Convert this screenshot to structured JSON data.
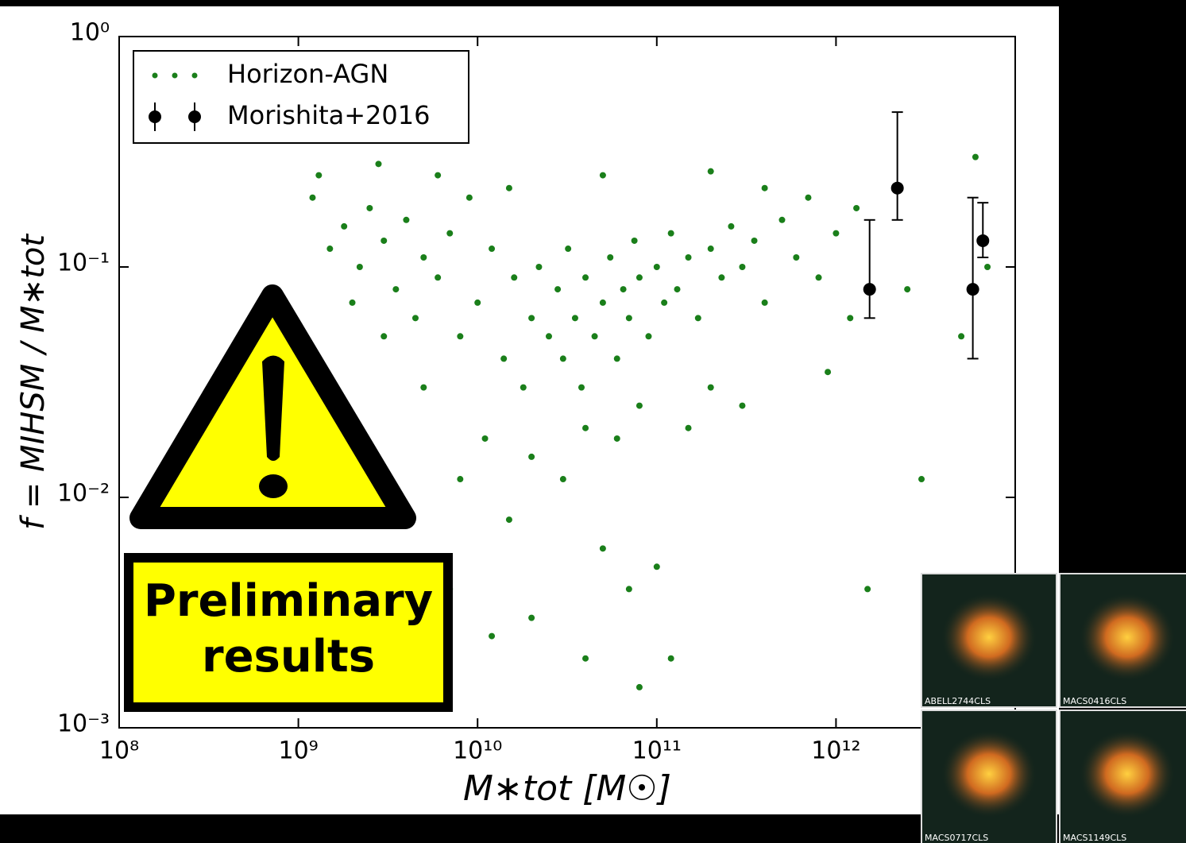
{
  "chart_data": {
    "type": "scatter",
    "xlabel": "M∗tot [M☉]",
    "ylabel": "f = MIHSM / M∗tot",
    "xscale": "log",
    "yscale": "log",
    "xlim": [
      100000000,
      10000000000000
    ],
    "ylim": [
      0.001,
      1
    ],
    "xticks": [
      {
        "value": 100000000,
        "label": "10⁸"
      },
      {
        "value": 1000000000,
        "label": "10⁹"
      },
      {
        "value": 10000000000,
        "label": "10¹⁰"
      },
      {
        "value": 100000000000,
        "label": "10¹¹"
      },
      {
        "value": 1000000000000,
        "label": "10¹²"
      }
    ],
    "yticks": [
      {
        "value": 0.001,
        "label": "10⁻³"
      },
      {
        "value": 0.01,
        "label": "10⁻²"
      },
      {
        "value": 0.1,
        "label": "10⁻¹"
      },
      {
        "value": 1,
        "label": "10⁰"
      }
    ],
    "legend": "upper left",
    "series": [
      {
        "name": "Horizon-AGN",
        "color": "#1a7f1a",
        "x": [
          1200000000.0,
          1500000000.0,
          1800000000.0,
          2200000000.0,
          2500000000.0,
          3000000000.0,
          3500000000.0,
          4000000000.0,
          4500000000.0,
          5000000000.0,
          6000000000.0,
          7000000000.0,
          8000000000.0,
          9000000000.0,
          10000000000.0,
          12000000000.0,
          14000000000.0,
          16000000000.0,
          18000000000.0,
          20000000000.0,
          22000000000.0,
          25000000000.0,
          28000000000.0,
          30000000000.0,
          32000000000.0,
          35000000000.0,
          38000000000.0,
          40000000000.0,
          45000000000.0,
          50000000000.0,
          55000000000.0,
          60000000000.0,
          65000000000.0,
          70000000000.0,
          75000000000.0,
          80000000000.0,
          90000000000.0,
          100000000000.0,
          110000000000.0,
          120000000000.0,
          130000000000.0,
          150000000000.0,
          170000000000.0,
          200000000000.0,
          230000000000.0,
          260000000000.0,
          300000000000.0,
          350000000000.0,
          400000000000.0,
          500000000000.0,
          600000000000.0,
          700000000000.0,
          800000000000.0,
          1000000000000.0,
          1300000000000.0,
          20000000000.0,
          30000000000.0,
          40000000000.0,
          60000000000.0,
          80000000000.0,
          15000000000.0,
          50000000000.0,
          70000000000.0,
          100000000000.0,
          200000000000.0,
          150000000000.0,
          300000000000.0,
          20000000000.0,
          40000000000.0,
          80000000000.0,
          120000000000.0,
          5000000000.0,
          3000000000.0,
          2000000000.0,
          1300000000.0,
          2800000000.0,
          6000000000.0,
          15000000000.0,
          50000000000.0,
          200000000000.0,
          400000000000.0,
          7000000000000.0,
          5000000000000.0,
          3000000000000.0,
          1500000000000.0,
          6000000000000.0,
          900000000000.0,
          1200000000000.0,
          2500000000000.0,
          8000000000.0,
          11000000000.0,
          7000000000.0,
          12000000000.0
        ],
        "values": [
          0.2,
          0.12,
          0.15,
          0.1,
          0.18,
          0.13,
          0.08,
          0.16,
          0.06,
          0.11,
          0.09,
          0.14,
          0.05,
          0.2,
          0.07,
          0.12,
          0.04,
          0.09,
          0.03,
          0.06,
          0.1,
          0.05,
          0.08,
          0.04,
          0.12,
          0.06,
          0.03,
          0.09,
          0.05,
          0.07,
          0.11,
          0.04,
          0.08,
          0.06,
          0.13,
          0.09,
          0.05,
          0.1,
          0.07,
          0.14,
          0.08,
          0.11,
          0.06,
          0.12,
          0.09,
          0.15,
          0.1,
          0.13,
          0.07,
          0.16,
          0.11,
          0.2,
          0.09,
          0.14,
          0.18,
          0.015,
          0.012,
          0.02,
          0.018,
          0.025,
          0.008,
          0.006,
          0.004,
          0.005,
          0.03,
          0.02,
          0.025,
          0.003,
          0.002,
          0.0015,
          0.002,
          0.03,
          0.05,
          0.07,
          0.25,
          0.28,
          0.25,
          0.22,
          0.25,
          0.26,
          0.22,
          0.1,
          0.05,
          0.012,
          0.004,
          0.3,
          0.035,
          0.06,
          0.08,
          0.012,
          0.018,
          0.004,
          0.0025
        ]
      },
      {
        "name": "Morishita+2016",
        "color": "#000000",
        "x": [
          1540000000000.0,
          2200000000000.0,
          5800000000000.0,
          6600000000000.0
        ],
        "values": [
          0.08,
          0.22,
          0.08,
          0.13
        ],
        "err_low": [
          0.02,
          0.06,
          0.04,
          0.02
        ],
        "err_high": [
          0.08,
          0.25,
          0.12,
          0.06
        ]
      }
    ]
  },
  "overlay": {
    "warning_lines": [
      "Preliminary",
      "results"
    ],
    "insets": [
      "ABELL2744CLS",
      "MACS0416CLS",
      "MACS0717CLS",
      "MACS1149CLS"
    ]
  }
}
